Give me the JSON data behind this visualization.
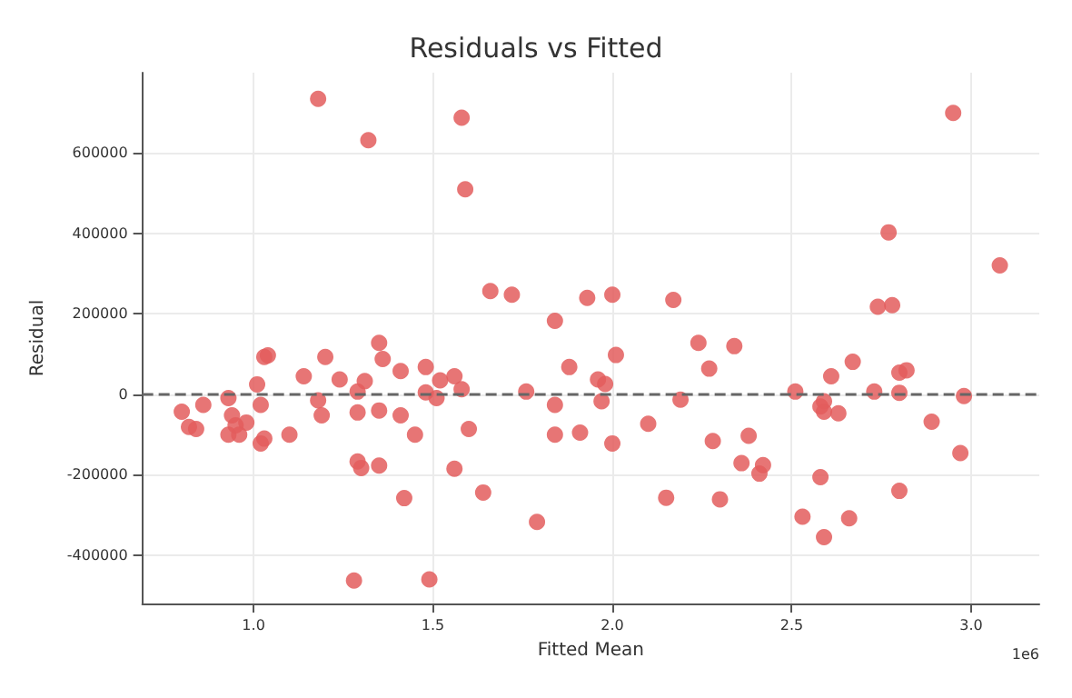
{
  "chart_data": {
    "type": "scatter",
    "title": "Residuals vs Fitted",
    "xlabel": "Fitted Mean",
    "ylabel": "Residual",
    "annotations": [
      "1e6"
    ],
    "x": [
      0.8,
      0.82,
      0.84,
      0.86,
      0.93,
      0.93,
      0.94,
      0.95,
      0.96,
      0.98,
      1.01,
      1.03,
      1.04,
      1.02,
      1.03,
      1.02,
      1.1,
      1.14,
      1.18,
      1.18,
      1.19,
      1.2,
      1.24,
      1.29,
      1.29,
      1.29,
      1.3,
      1.31,
      1.32,
      1.35,
      1.36,
      1.35,
      1.35,
      1.41,
      1.41,
      1.42,
      1.28,
      1.45,
      1.48,
      1.48,
      1.49,
      1.51,
      1.52,
      1.56,
      1.56,
      1.58,
      1.58,
      1.59,
      1.6,
      1.66,
      1.64,
      1.72,
      1.76,
      1.79,
      1.84,
      1.84,
      1.84,
      1.88,
      1.91,
      1.93,
      1.96,
      1.97,
      1.98,
      2.0,
      2.0,
      2.01,
      2.1,
      2.15,
      2.17,
      2.19,
      2.24,
      2.27,
      2.28,
      2.3,
      2.34,
      2.36,
      2.38,
      2.41,
      2.42,
      2.51,
      2.53,
      2.58,
      2.58,
      2.59,
      2.59,
      2.59,
      2.61,
      2.63,
      2.66,
      2.67,
      2.73,
      2.74,
      2.77,
      2.78,
      2.8,
      2.8,
      2.8,
      2.82,
      2.89,
      2.95,
      2.97,
      2.98,
      3.08
    ],
    "values": [
      -43000,
      -81000,
      -86000,
      -26000,
      -9000,
      -100000,
      -52000,
      -77000,
      -100000,
      -70000,
      25000,
      93000,
      97000,
      -26000,
      -110000,
      -122000,
      -100000,
      45000,
      -15000,
      735000,
      -52000,
      93000,
      37000,
      -45000,
      7000,
      -167000,
      -183000,
      33000,
      632000,
      128000,
      88000,
      -177000,
      -40000,
      -52000,
      58000,
      -258000,
      -463000,
      -100000,
      68000,
      5000,
      -460000,
      -9000,
      35000,
      45000,
      -185000,
      13000,
      688000,
      510000,
      -86000,
      257000,
      -244000,
      248000,
      7000,
      -317000,
      183000,
      -26000,
      -100000,
      68000,
      -95000,
      240000,
      37000,
      -17000,
      26000,
      248000,
      -122000,
      98000,
      -73000,
      -257000,
      235000,
      -13000,
      128000,
      64000,
      -116000,
      -261000,
      120000,
      -171000,
      -103000,
      -197000,
      -176000,
      7000,
      -304000,
      -30000,
      -206000,
      -17000,
      -43000,
      -355000,
      45000,
      -47000,
      -308000,
      81000,
      7000,
      218000,
      403000,
      222000,
      54000,
      4000,
      -240000,
      60000,
      -68000,
      700000,
      -146000,
      -4000,
      321000
    ],
    "color": "#e35d5d",
    "marker": "circle",
    "xlim": [
      0.69,
      3.19
    ],
    "ylim": [
      -520000,
      800000
    ],
    "xticks": [
      {
        "value": 1,
        "label": "1.0"
      },
      {
        "value": 1.5,
        "label": "1.5"
      },
      {
        "value": 2,
        "label": "2.0"
      },
      {
        "value": 2.5,
        "label": "2.5"
      },
      {
        "value": 3,
        "label": "3.0"
      }
    ],
    "yticks": [
      -400000,
      -200000,
      0,
      200000,
      400000,
      600000
    ],
    "ref_lines": [
      {
        "axis": "y",
        "value": 0,
        "color": "#666666",
        "line_style": "dashed"
      }
    ],
    "grid": true
  }
}
